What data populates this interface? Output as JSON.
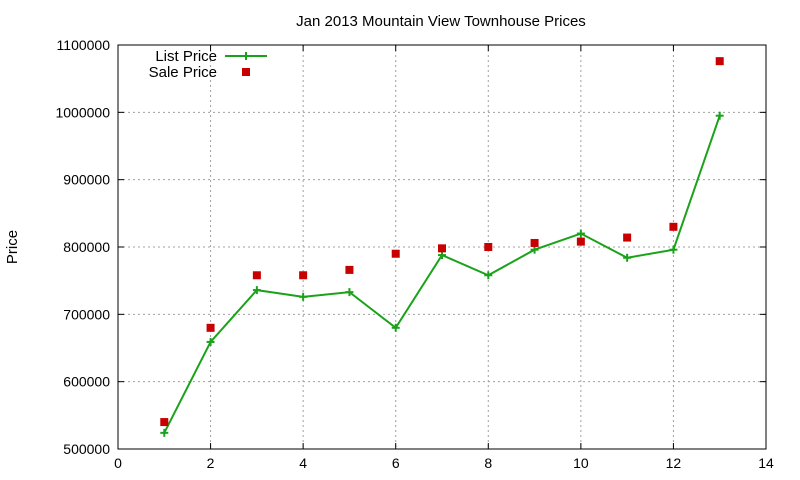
{
  "chart_data": {
    "type": "line",
    "title": "Jan 2013 Mountain View Townhouse Prices",
    "xlabel": "",
    "ylabel": "Price",
    "xlim": [
      0,
      14
    ],
    "ylim": [
      500000,
      1100000
    ],
    "x_ticks": [
      0,
      2,
      4,
      6,
      8,
      10,
      12,
      14
    ],
    "y_ticks": [
      500000,
      600000,
      700000,
      800000,
      900000,
      1000000,
      1100000
    ],
    "grid": true,
    "legend_position": "top-left",
    "series": [
      {
        "name": "List Price",
        "style": "line-with-plus-markers",
        "color": "#1aa31a",
        "x": [
          1,
          2,
          3,
          4,
          5,
          6,
          7,
          8,
          9,
          10,
          11,
          12,
          13
        ],
        "y": [
          524000,
          659000,
          736000,
          726000,
          733000,
          680000,
          788000,
          758000,
          796000,
          820000,
          784000,
          796000,
          995000
        ]
      },
      {
        "name": "Sale Price",
        "style": "square-markers",
        "color": "#c80000",
        "x": [
          1,
          2,
          3,
          4,
          5,
          6,
          7,
          8,
          9,
          10,
          11,
          12,
          13
        ],
        "y": [
          540000,
          680000,
          758000,
          758000,
          766000,
          790000,
          798000,
          800000,
          806000,
          808000,
          814000,
          830000,
          1076000
        ]
      }
    ]
  }
}
